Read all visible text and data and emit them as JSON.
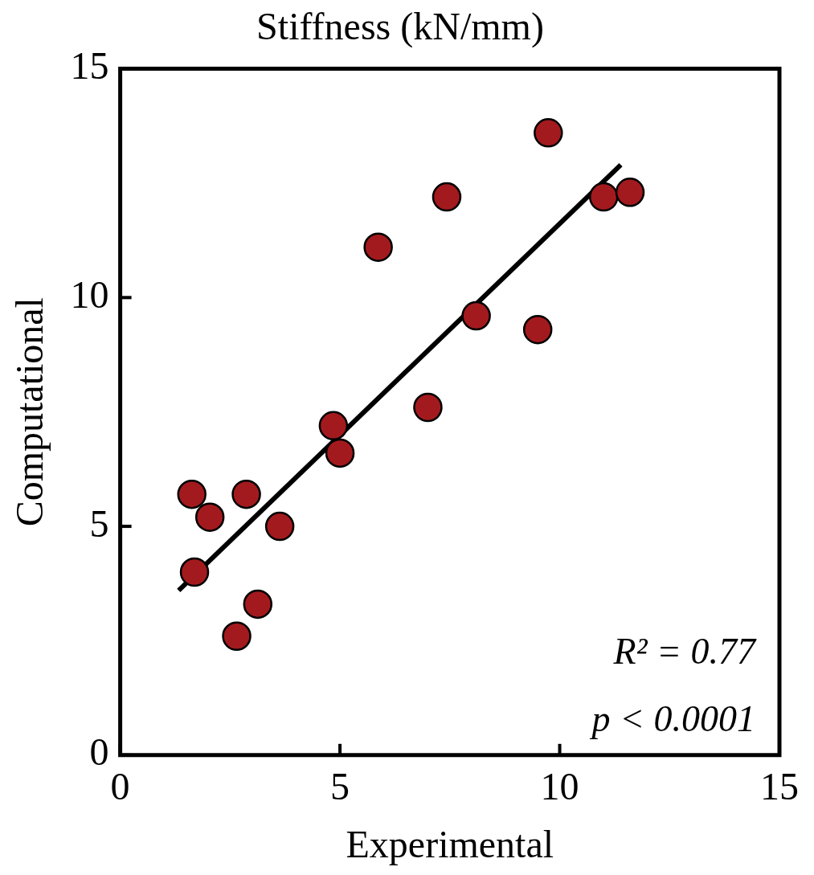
{
  "chart_data": {
    "type": "scatter",
    "title": "Stiffness (kN/mm)",
    "xlabel": "Experimental",
    "ylabel": "Computational",
    "xlim": [
      0,
      15
    ],
    "ylim": [
      0,
      15
    ],
    "xticks": [
      0,
      5,
      10,
      15
    ],
    "yticks": [
      0,
      5,
      10,
      15
    ],
    "grid": false,
    "legend": false,
    "series": [
      {
        "type": "scatter",
        "marker": "circle",
        "color": "#a31a1e",
        "x": [
          1.63,
          2.04,
          2.87,
          3.63,
          1.69,
          3.13,
          2.65,
          4.85,
          5.0,
          5.87,
          7.43,
          7.0,
          8.1,
          9.5,
          9.74,
          11.0,
          11.6
        ],
        "values": [
          5.7,
          5.2,
          5.7,
          5.0,
          4.0,
          3.3,
          2.6,
          7.2,
          6.6,
          11.1,
          12.2,
          7.6,
          9.6,
          9.3,
          13.6,
          12.2,
          12.3
        ]
      },
      {
        "type": "line",
        "color": "#000000",
        "x": [
          1.33,
          11.39
        ],
        "values": [
          3.6,
          12.9
        ]
      }
    ],
    "annotations": [
      "R² = 0.77",
      "p < 0.0001"
    ]
  }
}
